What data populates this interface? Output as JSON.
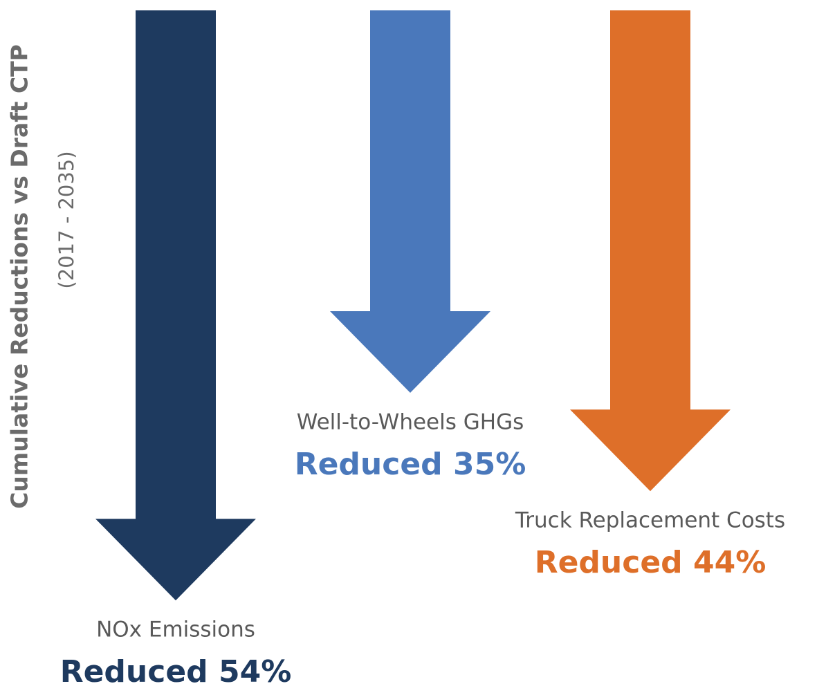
{
  "chart_data": {
    "type": "arrow",
    "ylabel": "Cumulative Reductions vs Draft CTP",
    "subtitle": "(2017 - 2035)",
    "categories": [
      "NOx Emissions",
      "Well-to-Wheels GHGs",
      "Truck Replacement Costs"
    ],
    "values": [
      54,
      35,
      44
    ],
    "value_labels": [
      "Reduced 54%",
      "Reduced 35%",
      "Reduced 44%"
    ],
    "colors": [
      "#1e3a5f",
      "#4a78bb",
      "#de6f29"
    ]
  }
}
